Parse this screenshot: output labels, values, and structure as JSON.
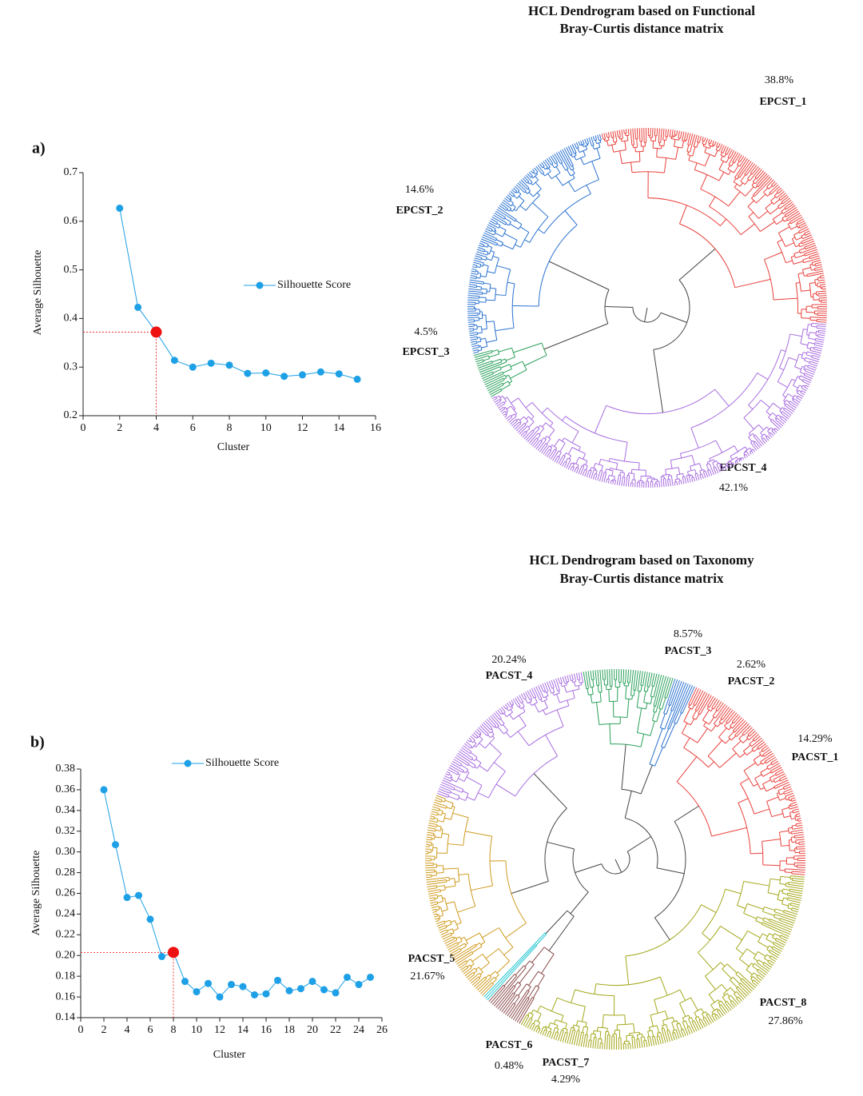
{
  "chart_data": [
    {
      "type": "line",
      "panel_label": "a)",
      "x_label": "Cluster",
      "y_label": "Average Silhouette",
      "x": [
        2,
        3,
        4,
        5,
        6,
        7,
        8,
        9,
        10,
        11,
        12,
        13,
        14,
        15
      ],
      "series": [
        {
          "name": "Silhouette Score",
          "color": "#1ea0e6",
          "values": [
            0.627,
            0.423,
            0.372,
            0.314,
            0.3,
            0.308,
            0.304,
            0.287,
            0.288,
            0.281,
            0.284,
            0.29,
            0.286,
            0.275
          ]
        }
      ],
      "xlim": [
        0,
        16
      ],
      "xticks": [
        0,
        2,
        4,
        6,
        8,
        10,
        12,
        14,
        16
      ],
      "ylim": [
        0.2,
        0.7
      ],
      "yticks": [
        0.2,
        0.3,
        0.4,
        0.5,
        0.6,
        0.7
      ],
      "highlight_x": 4,
      "highlight_color": "#ee1111"
    },
    {
      "type": "line",
      "panel_label": "b)",
      "x_label": "Cluster",
      "y_label": "Average Silhouette",
      "x": [
        2,
        3,
        4,
        5,
        6,
        7,
        8,
        9,
        10,
        11,
        12,
        13,
        14,
        15,
        16,
        17,
        18,
        19,
        20,
        21,
        22,
        23,
        24,
        25
      ],
      "series": [
        {
          "name": "Silhouette Score",
          "color": "#1ea0e6",
          "values": [
            0.36,
            0.307,
            0.256,
            0.258,
            0.235,
            0.199,
            0.203,
            0.175,
            0.165,
            0.173,
            0.16,
            0.172,
            0.17,
            0.162,
            0.163,
            0.176,
            0.166,
            0.168,
            0.175,
            0.167,
            0.164,
            0.179,
            0.172,
            0.179
          ]
        }
      ],
      "xlim": [
        0,
        26
      ],
      "xticks": [
        0,
        2,
        4,
        6,
        8,
        10,
        12,
        14,
        16,
        18,
        20,
        22,
        24,
        26
      ],
      "ylim": [
        0.14,
        0.38
      ],
      "yticks": [
        0.14,
        0.16,
        0.18,
        {
          "value": 0.2,
          "label": "0.20"
        },
        0.22,
        0.24,
        0.26,
        0.28,
        {
          "value": 0.3,
          "label": "0.30"
        },
        0.32,
        0.34,
        0.36,
        0.38
      ],
      "highlight_x": 8,
      "highlight_color": "#ee1111"
    }
  ],
  "dendrograms": [
    {
      "title": [
        "HCL Dendrogram based on Functional",
        "Bray-Curtis distance matrix"
      ],
      "clusters": [
        {
          "name": "EPCST_1",
          "share": "38.8%",
          "color": "#e8413c"
        },
        {
          "name": "EPCST_2",
          "share": "14.6%",
          "color": "#2a72d0"
        },
        {
          "name": "EPCST_3",
          "share": "4.5%",
          "color": "#2aa05a"
        },
        {
          "name": "EPCST_4",
          "share": "42.1%",
          "color": "#a86ee0"
        }
      ]
    },
    {
      "title": [
        "HCL Dendrogram based on Taxonomy",
        "Bray-Curtis distance matrix"
      ],
      "clusters": [
        {
          "name": "PACST_1",
          "share": "14.29%",
          "color": "#e8413c"
        },
        {
          "name": "PACST_2",
          "share": "2.62%",
          "color": "#2a72d0"
        },
        {
          "name": "PACST_3",
          "share": "8.57%",
          "color": "#2aa05a"
        },
        {
          "name": "PACST_4",
          "share": "20.24%",
          "color": "#a86ee0"
        },
        {
          "name": "PACST_5",
          "share": "21.67%",
          "color": "#cf9a1e"
        },
        {
          "name": "PACST_6",
          "share": "0.48%",
          "color": "#22c6d0"
        },
        {
          "name": "PACST_7",
          "share": "4.29%",
          "color": "#8b4a4a"
        },
        {
          "name": "PACST_8",
          "share": "27.86%",
          "color": "#a3a81a"
        }
      ]
    }
  ]
}
